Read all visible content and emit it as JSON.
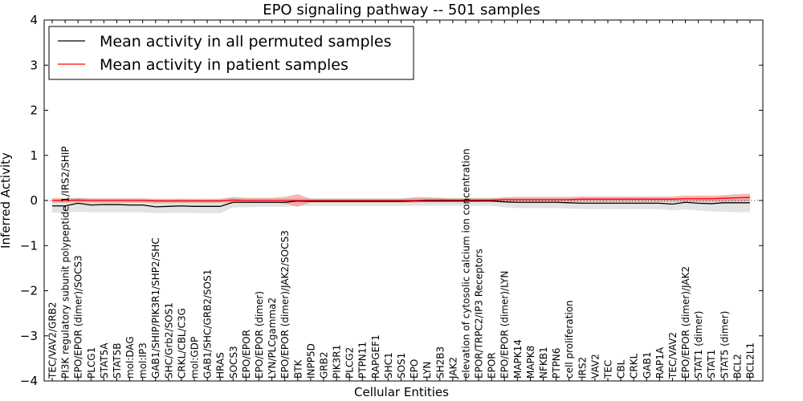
{
  "chart_data": {
    "type": "line",
    "title": "EPO signaling pathway -- 501 samples",
    "xlabel": "Cellular Entities",
    "ylabel": "Inferred Activity",
    "ylim": [
      -4,
      4
    ],
    "yticks": [
      -4,
      -3,
      -2,
      -1,
      0,
      1,
      2,
      3,
      4
    ],
    "ytick_labels": [
      "−4",
      "−3",
      "−2",
      "−1",
      "0",
      "1",
      "2",
      "3",
      "4"
    ],
    "legend_position": "top-left",
    "colors": {
      "permuted": "#000000",
      "patient": "#ff0000",
      "permuted_band": "#d9d9d9",
      "patient_band": "#f08080"
    },
    "categories": [
      "TEC/VAV2/GRB2",
      "PI3K regulatory subunit polypeptide 1/IRS2/SHIP",
      "EPO/EPOR (dimer)/SOCS3",
      "PLCG1",
      "STAT5A",
      "STAT5B",
      "mol:DAG",
      "mol:IP3",
      "GAB1/SHIP/PIK3R1/SHP2/SHC",
      "SHC/Grb2/SOS1",
      "CRKL/CBL/C3G",
      "mol:GDP",
      "GAB1/SHC/GRB2/SOS1",
      "HRAS",
      "SOCS3",
      "EPO/EPOR",
      "EPO/EPOR (dimer)",
      "LYN/PLCgamma2",
      "EPO/EPOR (dimer)/JAK2/SOCS3",
      "BTK",
      "INPP5D",
      "GRB2",
      "PIK3R1",
      "PLCG2",
      "PTPN11",
      "RAPGEF1",
      "SHC1",
      "SOS1",
      "EPO",
      "LYN",
      "SH2B3",
      "JAK2",
      "elevation of cytosolic calcium ion concentration",
      "EPOR/TRPC2/IP3 Receptors",
      "EPOR",
      "EPO/EPOR (dimer)/LYN",
      "MAPK14",
      "MAPK8",
      "NFKB1",
      "PTPN6",
      "cell proliferation",
      "IRS2",
      "VAV2",
      "TEC",
      "CBL",
      "CRKL",
      "GAB1",
      "RAP1A",
      "TEC/VAV2",
      "EPO/EPOR (dimer)/JAK2",
      "STAT1 (dimer)",
      "STAT1",
      "STAT5 (dimer)",
      "BCL2",
      "BCL2L1"
    ],
    "series": [
      {
        "name": "Mean activity in all permuted samples",
        "color": "#000000",
        "values": [
          -0.12,
          -0.12,
          -0.06,
          -0.1,
          -0.09,
          -0.09,
          -0.1,
          -0.1,
          -0.14,
          -0.13,
          -0.12,
          -0.13,
          -0.13,
          -0.13,
          -0.04,
          -0.04,
          -0.04,
          -0.04,
          -0.04,
          -0.01,
          -0.02,
          -0.02,
          -0.02,
          -0.02,
          -0.02,
          -0.02,
          -0.02,
          -0.02,
          -0.01,
          -0.01,
          -0.01,
          -0.01,
          -0.01,
          -0.01,
          -0.01,
          -0.03,
          -0.04,
          -0.04,
          -0.04,
          -0.04,
          -0.05,
          -0.06,
          -0.06,
          -0.06,
          -0.06,
          -0.06,
          -0.06,
          -0.06,
          -0.08,
          -0.04,
          -0.06,
          -0.07,
          -0.05,
          -0.05,
          -0.05
        ],
        "band_low": [
          -0.27,
          -0.27,
          -0.25,
          -0.26,
          -0.26,
          -0.26,
          -0.26,
          -0.26,
          -0.28,
          -0.28,
          -0.27,
          -0.28,
          -0.28,
          -0.28,
          -0.15,
          -0.15,
          -0.14,
          -0.14,
          -0.14,
          -0.12,
          -0.12,
          -0.12,
          -0.12,
          -0.12,
          -0.12,
          -0.12,
          -0.12,
          -0.12,
          -0.12,
          -0.12,
          -0.12,
          -0.12,
          -0.12,
          -0.12,
          -0.12,
          -0.15,
          -0.17,
          -0.17,
          -0.17,
          -0.17,
          -0.18,
          -0.19,
          -0.19,
          -0.19,
          -0.19,
          -0.19,
          -0.19,
          -0.19,
          -0.22,
          -0.2,
          -0.22,
          -0.24,
          -0.25,
          -0.26,
          -0.26
        ],
        "band_high": [
          0.04,
          0.04,
          0.05,
          0.04,
          0.04,
          0.04,
          0.04,
          0.04,
          0.02,
          0.02,
          0.03,
          0.02,
          0.02,
          0.02,
          0.05,
          0.05,
          0.05,
          0.05,
          0.05,
          0.06,
          0.05,
          0.05,
          0.05,
          0.05,
          0.05,
          0.05,
          0.05,
          0.05,
          0.06,
          0.06,
          0.06,
          0.06,
          0.06,
          0.06,
          0.06,
          0.06,
          0.06,
          0.06,
          0.06,
          0.06,
          0.06,
          0.06,
          0.06,
          0.06,
          0.06,
          0.06,
          0.06,
          0.06,
          0.05,
          0.06,
          0.06,
          0.07,
          0.08,
          0.08,
          0.08
        ]
      },
      {
        "name": "Mean activity in patient samples",
        "color": "#ff0000",
        "values": [
          0.0,
          0.0,
          0.01,
          0.0,
          0.0,
          0.0,
          0.0,
          0.0,
          -0.01,
          -0.01,
          -0.01,
          -0.01,
          -0.01,
          -0.01,
          0.01,
          0.0,
          0.0,
          0.0,
          0.0,
          0.0,
          0.0,
          0.0,
          0.0,
          0.0,
          0.0,
          0.0,
          0.0,
          0.0,
          0.0,
          0.01,
          0.01,
          0.01,
          0.01,
          0.01,
          0.01,
          0.02,
          0.02,
          0.02,
          0.02,
          0.02,
          0.02,
          0.03,
          0.03,
          0.03,
          0.03,
          0.03,
          0.03,
          0.03,
          0.03,
          0.04,
          0.04,
          0.04,
          0.05,
          0.06,
          0.07
        ],
        "band_low": [
          -0.05,
          -0.05,
          -0.04,
          -0.05,
          -0.05,
          -0.05,
          -0.05,
          -0.05,
          -0.06,
          -0.06,
          -0.06,
          -0.06,
          -0.06,
          -0.06,
          -0.05,
          -0.05,
          -0.05,
          -0.05,
          -0.07,
          -0.14,
          -0.04,
          -0.04,
          -0.04,
          -0.04,
          -0.04,
          -0.04,
          -0.04,
          -0.04,
          -0.05,
          -0.04,
          -0.04,
          -0.04,
          -0.04,
          -0.03,
          -0.03,
          -0.03,
          -0.03,
          -0.03,
          -0.03,
          -0.03,
          -0.03,
          -0.03,
          -0.03,
          -0.03,
          -0.03,
          -0.03,
          -0.03,
          -0.03,
          -0.03,
          -0.03,
          -0.03,
          -0.03,
          -0.03,
          -0.02,
          -0.02
        ],
        "band_high": [
          0.05,
          0.05,
          0.06,
          0.05,
          0.05,
          0.05,
          0.05,
          0.05,
          0.04,
          0.04,
          0.04,
          0.04,
          0.04,
          0.04,
          0.08,
          0.06,
          0.06,
          0.06,
          0.08,
          0.14,
          0.04,
          0.04,
          0.04,
          0.04,
          0.04,
          0.04,
          0.04,
          0.04,
          0.07,
          0.07,
          0.06,
          0.04,
          0.05,
          0.05,
          0.05,
          0.07,
          0.08,
          0.08,
          0.08,
          0.08,
          0.08,
          0.09,
          0.09,
          0.09,
          0.09,
          0.09,
          0.09,
          0.09,
          0.09,
          0.11,
          0.11,
          0.11,
          0.12,
          0.14,
          0.15
        ]
      }
    ]
  }
}
